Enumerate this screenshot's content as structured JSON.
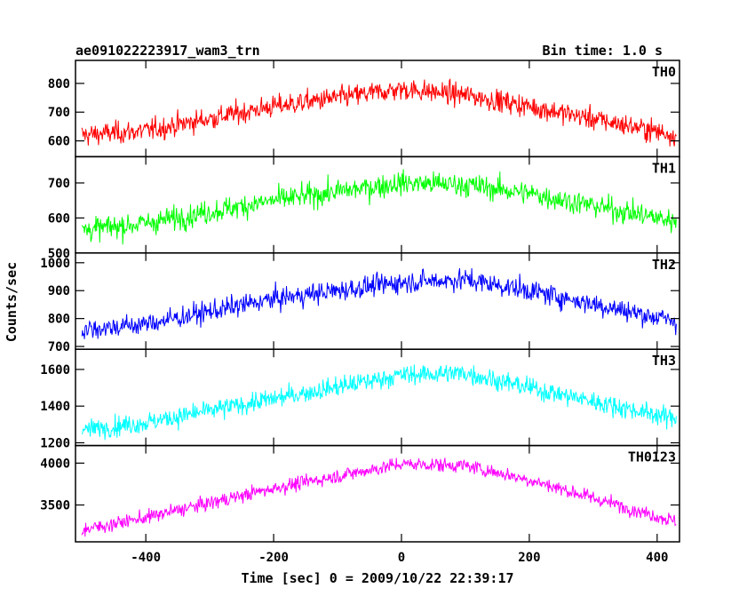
{
  "chart_data": {
    "type": "line",
    "title": "ae091022223917_wam3_trn",
    "bin_time": "Bin time: 1.0 s",
    "xlabel": "Time [sec] 0 = 2009/10/22 22:39:17",
    "ylabel": "Counts/sec",
    "xlim": [
      -510,
      435
    ],
    "x_ticks": [
      -400,
      -200,
      0,
      200,
      400
    ],
    "panels": [
      {
        "name": "TH0",
        "color": "#ff0000",
        "ylim": [
          545,
          880
        ],
        "y_ticks": [
          600,
          700,
          800
        ],
        "profile_x": [
          -500,
          -400,
          -200,
          0,
          100,
          200,
          430
        ],
        "profile_y": [
          620,
          635,
          720,
          780,
          760,
          720,
          620
        ],
        "noise": 32
      },
      {
        "name": "TH1",
        "color": "#00ff00",
        "ylim": [
          500,
          775
        ],
        "y_ticks": [
          500,
          600,
          700
        ],
        "profile_x": [
          -500,
          -400,
          -200,
          0,
          100,
          200,
          430
        ],
        "profile_y": [
          565,
          585,
          650,
          700,
          695,
          670,
          590
        ],
        "noise": 28
      },
      {
        "name": "TH2",
        "color": "#0000ff",
        "ylim": [
          690,
          1035
        ],
        "y_ticks": [
          700,
          800,
          900,
          1000
        ],
        "profile_x": [
          -500,
          -400,
          -200,
          0,
          100,
          200,
          430
        ],
        "profile_y": [
          760,
          780,
          870,
          930,
          940,
          900,
          790
        ],
        "noise": 32
      },
      {
        "name": "TH3",
        "color": "#00ffff",
        "ylim": [
          1185,
          1710
        ],
        "y_ticks": [
          1200,
          1400,
          1600
        ],
        "profile_x": [
          -500,
          -400,
          -200,
          0,
          100,
          200,
          430
        ],
        "profile_y": [
          1270,
          1310,
          1440,
          1570,
          1580,
          1500,
          1330
        ],
        "noise": 45
      },
      {
        "name": "TH0123",
        "color": "#ff00ff",
        "ylim": [
          3060,
          4210
        ],
        "y_ticks": [
          3500,
          4000
        ],
        "profile_x": [
          -500,
          -400,
          -200,
          0,
          100,
          200,
          430
        ],
        "profile_y": [
          3200,
          3350,
          3700,
          3990,
          3970,
          3800,
          3300
        ],
        "noise": 70
      }
    ]
  }
}
